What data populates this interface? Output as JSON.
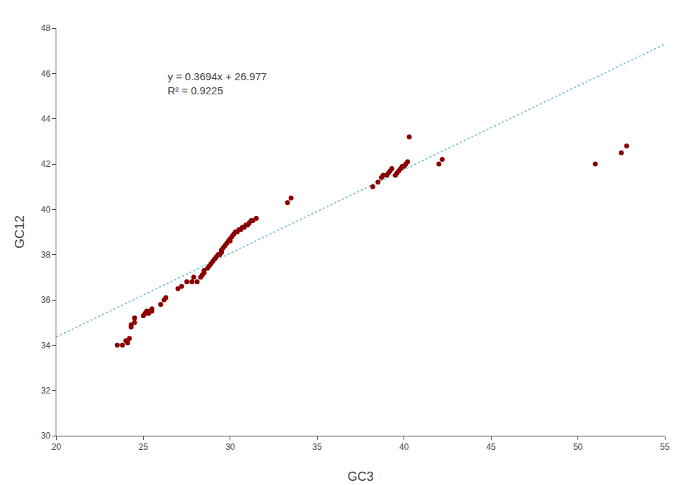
{
  "chart_data": {
    "type": "scatter",
    "xlabel": "GC3",
    "ylabel": "GC12",
    "xlim": [
      20,
      55
    ],
    "ylim": [
      30,
      48
    ],
    "xticks": [
      20,
      25,
      30,
      35,
      40,
      45,
      50,
      55
    ],
    "yticks": [
      30,
      32,
      34,
      36,
      38,
      40,
      42,
      44,
      46,
      48
    ],
    "grid": false,
    "annotations": [
      "y = 0.3694x + 26.977",
      "R² = 0.9225"
    ],
    "series": [
      {
        "type": "scatter",
        "color": "#8B0000",
        "x": [
          23.5,
          23.8,
          24.0,
          24.1,
          24.2,
          24.3,
          24.3,
          24.5,
          24.5,
          25.0,
          25.1,
          25.2,
          25.3,
          25.4,
          25.5,
          25.5,
          26.0,
          26.2,
          26.3,
          27.0,
          27.2,
          27.5,
          27.8,
          27.9,
          28.1,
          28.3,
          28.4,
          28.5,
          28.5,
          28.7,
          28.8,
          28.9,
          29.0,
          29.1,
          29.2,
          29.3,
          29.4,
          29.5,
          29.5,
          29.6,
          29.7,
          29.8,
          29.9,
          30.0,
          30.0,
          30.1,
          30.2,
          30.3,
          30.4,
          30.5,
          30.6,
          30.7,
          30.8,
          30.9,
          31.0,
          31.1,
          31.2,
          31.3,
          31.5,
          33.3,
          33.5,
          38.2,
          38.5,
          38.7,
          38.8,
          39.0,
          39.1,
          39.2,
          39.3,
          39.5,
          39.6,
          39.7,
          39.8,
          39.9,
          40.0,
          40.1,
          40.2,
          40.3,
          42.0,
          42.2,
          51.0,
          52.5,
          52.8
        ],
        "values": [
          34.0,
          34.0,
          34.2,
          34.1,
          34.3,
          34.8,
          34.9,
          35.0,
          35.2,
          35.3,
          35.4,
          35.5,
          35.4,
          35.5,
          35.5,
          35.6,
          35.8,
          36.0,
          36.1,
          36.5,
          36.6,
          36.8,
          36.8,
          37.0,
          36.8,
          37.0,
          37.1,
          37.2,
          37.3,
          37.4,
          37.5,
          37.6,
          37.7,
          37.8,
          37.9,
          38.0,
          38.0,
          38.1,
          38.2,
          38.3,
          38.4,
          38.5,
          38.6,
          38.6,
          38.7,
          38.8,
          38.9,
          39.0,
          39.0,
          39.1,
          39.1,
          39.2,
          39.2,
          39.3,
          39.3,
          39.4,
          39.5,
          39.5,
          39.6,
          40.3,
          40.5,
          41.0,
          41.2,
          41.4,
          41.5,
          41.5,
          41.6,
          41.7,
          41.8,
          41.5,
          41.6,
          41.7,
          41.8,
          41.9,
          41.9,
          42.0,
          42.1,
          43.2,
          42.0,
          42.2,
          42.0,
          42.5,
          42.8
        ]
      },
      {
        "type": "line",
        "color": "#7EC8D8",
        "line_style": "dotted",
        "x": [
          20,
          55
        ],
        "values": [
          34.365,
          47.294
        ]
      }
    ]
  }
}
